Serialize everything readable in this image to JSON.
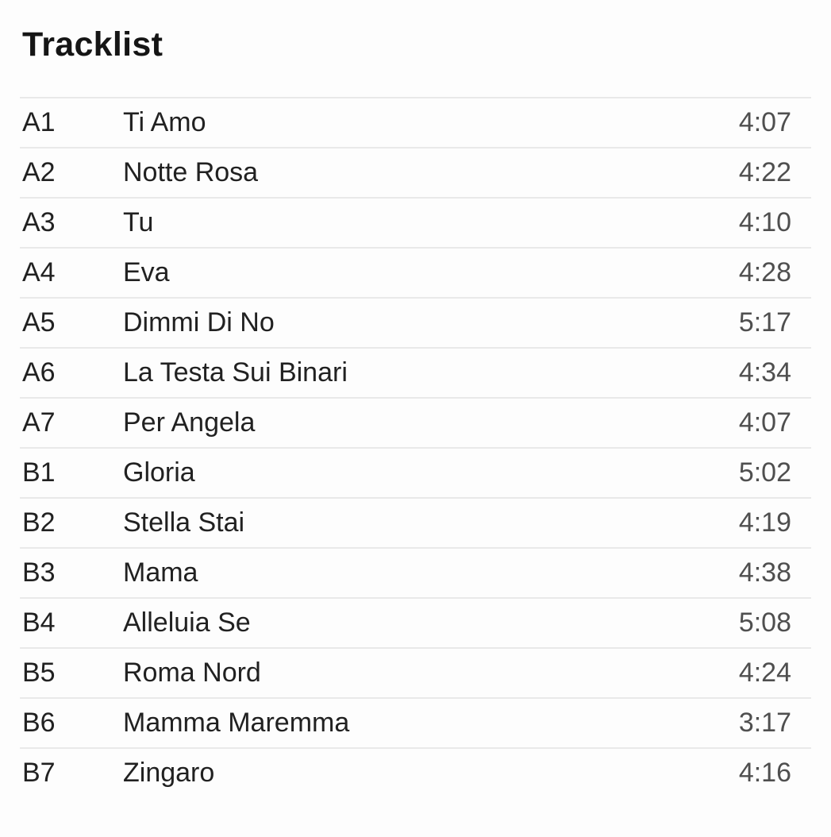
{
  "header": {
    "title": "Tracklist"
  },
  "colors": {
    "background": "#fdfdfd",
    "text_primary": "#212121",
    "text_duration": "#4f4f4f",
    "divider": "#e9e9e9"
  },
  "tracklist": {
    "tracks": [
      {
        "position": "A1",
        "title": "Ti Amo",
        "duration": "4:07"
      },
      {
        "position": "A2",
        "title": "Notte Rosa",
        "duration": "4:22"
      },
      {
        "position": "A3",
        "title": "Tu",
        "duration": "4:10"
      },
      {
        "position": "A4",
        "title": "Eva",
        "duration": "4:28"
      },
      {
        "position": "A5",
        "title": "Dimmi Di No",
        "duration": "5:17"
      },
      {
        "position": "A6",
        "title": "La Testa Sui Binari",
        "duration": "4:34"
      },
      {
        "position": "A7",
        "title": "Per Angela",
        "duration": "4:07"
      },
      {
        "position": "B1",
        "title": "Gloria",
        "duration": "5:02"
      },
      {
        "position": "B2",
        "title": "Stella Stai",
        "duration": "4:19"
      },
      {
        "position": "B3",
        "title": "Mama",
        "duration": "4:38"
      },
      {
        "position": "B4",
        "title": "Alleluia Se",
        "duration": "5:08"
      },
      {
        "position": "B5",
        "title": "Roma Nord",
        "duration": "4:24"
      },
      {
        "position": "B6",
        "title": "Mamma Maremma",
        "duration": "3:17"
      },
      {
        "position": "B7",
        "title": "Zingaro",
        "duration": "4:16"
      }
    ]
  }
}
